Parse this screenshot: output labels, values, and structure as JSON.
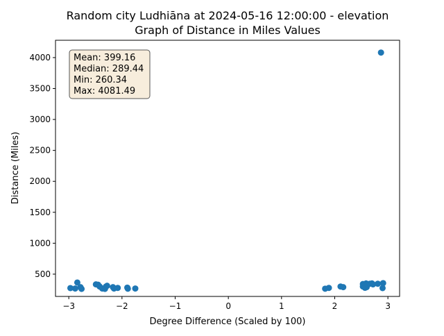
{
  "chart_data": {
    "type": "scatter",
    "title_line1": "Random city Ludhiāna at 2024-05-16 12:00:00  - elevation",
    "title_line2": "Graph of Distance in Miles Values",
    "xlabel": "Degree Difference (Scaled by 100)",
    "ylabel": "Distance (Miles)",
    "xlim": [
      -3.25,
      3.22
    ],
    "ylim": [
      140,
      4280
    ],
    "x_ticks": [
      -3,
      -2,
      -1,
      0,
      1,
      2,
      3
    ],
    "x_tick_labels": [
      "−3",
      "−2",
      "−1",
      "0",
      "1",
      "2",
      "3"
    ],
    "y_ticks": [
      500,
      1000,
      1500,
      2000,
      2500,
      3000,
      3500,
      4000
    ],
    "y_tick_labels": [
      "500",
      "1000",
      "1500",
      "2000",
      "2500",
      "3000",
      "3500",
      "4000"
    ],
    "grid": false,
    "marker_color": "#1f77b4",
    "stats": {
      "mean": "Mean: 399.16",
      "median": "Median: 289.44",
      "min": "Min: 260.34",
      "max": "Max: 4081.49"
    },
    "stats_box_color": "#f5e9d3",
    "points": [
      {
        "x": -2.97,
        "y": 275
      },
      {
        "x": -2.88,
        "y": 268
      },
      {
        "x": -2.84,
        "y": 365
      },
      {
        "x": -2.78,
        "y": 290
      },
      {
        "x": -2.76,
        "y": 262
      },
      {
        "x": -2.49,
        "y": 335
      },
      {
        "x": -2.45,
        "y": 330
      },
      {
        "x": -2.42,
        "y": 300
      },
      {
        "x": -2.37,
        "y": 268
      },
      {
        "x": -2.32,
        "y": 262
      },
      {
        "x": -2.3,
        "y": 300
      },
      {
        "x": -2.28,
        "y": 312
      },
      {
        "x": -2.17,
        "y": 290
      },
      {
        "x": -2.15,
        "y": 268
      },
      {
        "x": -2.08,
        "y": 278
      },
      {
        "x": -1.9,
        "y": 282
      },
      {
        "x": -1.89,
        "y": 265
      },
      {
        "x": -1.75,
        "y": 268
      },
      {
        "x": 1.82,
        "y": 265
      },
      {
        "x": 1.89,
        "y": 278
      },
      {
        "x": 2.11,
        "y": 300
      },
      {
        "x": 2.16,
        "y": 290
      },
      {
        "x": 2.53,
        "y": 340
      },
      {
        "x": 2.53,
        "y": 300
      },
      {
        "x": 2.55,
        "y": 315
      },
      {
        "x": 2.57,
        "y": 280
      },
      {
        "x": 2.59,
        "y": 350
      },
      {
        "x": 2.6,
        "y": 290
      },
      {
        "x": 2.62,
        "y": 330
      },
      {
        "x": 2.66,
        "y": 345
      },
      {
        "x": 2.7,
        "y": 350
      },
      {
        "x": 2.72,
        "y": 335
      },
      {
        "x": 2.81,
        "y": 345
      },
      {
        "x": 2.87,
        "y": 4081
      },
      {
        "x": 2.9,
        "y": 275
      },
      {
        "x": 2.91,
        "y": 355
      }
    ]
  }
}
